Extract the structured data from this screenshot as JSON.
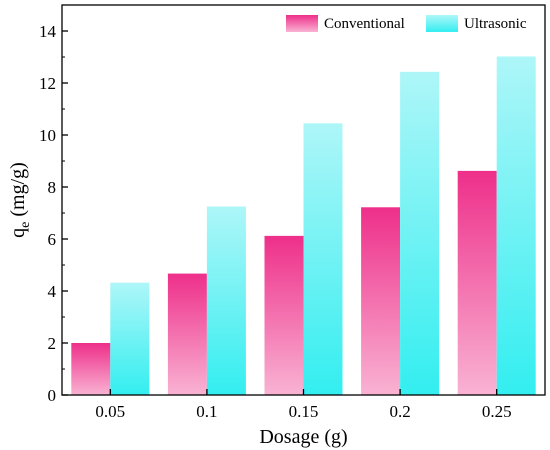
{
  "chart_data": {
    "type": "bar",
    "categories": [
      "0.05",
      "0.1",
      "0.15",
      "0.2",
      "0.25"
    ],
    "series": [
      {
        "name": "Conventional",
        "values": [
          2.0,
          4.67,
          6.12,
          7.22,
          8.62
        ]
      },
      {
        "name": "Ultrasonic",
        "values": [
          4.32,
          7.25,
          10.45,
          12.43,
          13.02
        ]
      }
    ],
    "xlabel": "Dosage (g)",
    "ylabel": {
      "main": "q",
      "sub": "e",
      "rest": " (mg/g)"
    },
    "ylim": [
      0,
      15
    ],
    "yticks": [
      "0",
      "2",
      "4",
      "6",
      "8",
      "10",
      "12",
      "14"
    ],
    "legend_position": "top-right",
    "grid": false,
    "colors": {
      "Conventional": {
        "top": "#ee2f8a",
        "bottom": "#f9b3d3"
      },
      "Ultrasonic": {
        "top": "#aef6f8",
        "bottom": "#33eef0"
      }
    }
  }
}
